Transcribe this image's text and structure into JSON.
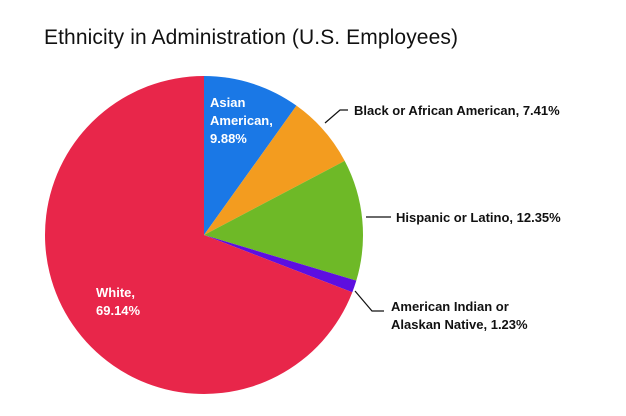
{
  "chart_data": {
    "type": "pie",
    "title": "Ethnicity in Administration (U.S. Employees)",
    "start_angle": "12 o'clock",
    "direction": "clockwise",
    "slices": [
      {
        "label_lines": [
          "Asian",
          "American,",
          "9.88%"
        ],
        "name": "Asian American",
        "value": 9.88,
        "color": "#1a78e6",
        "label_inside": true
      },
      {
        "label_lines": [
          "Black or African American, 7.41%"
        ],
        "name": "Black or African American",
        "value": 7.41,
        "color": "#f39c1f",
        "label_inside": false
      },
      {
        "label_lines": [
          "Hispanic or Latino, 12.35%"
        ],
        "name": "Hispanic or Latino",
        "value": 12.35,
        "color": "#6eb927",
        "label_inside": false
      },
      {
        "label_lines": [
          "American Indian or",
          "Alaskan Native, 1.23%"
        ],
        "name": "American Indian or Alaskan Native",
        "value": 1.23,
        "color": "#5d0ee0",
        "label_inside": false
      },
      {
        "label_lines": [
          "White,",
          "69.14%"
        ],
        "name": "White",
        "value": 69.14,
        "color": "#e8264a",
        "label_inside": true
      }
    ]
  }
}
